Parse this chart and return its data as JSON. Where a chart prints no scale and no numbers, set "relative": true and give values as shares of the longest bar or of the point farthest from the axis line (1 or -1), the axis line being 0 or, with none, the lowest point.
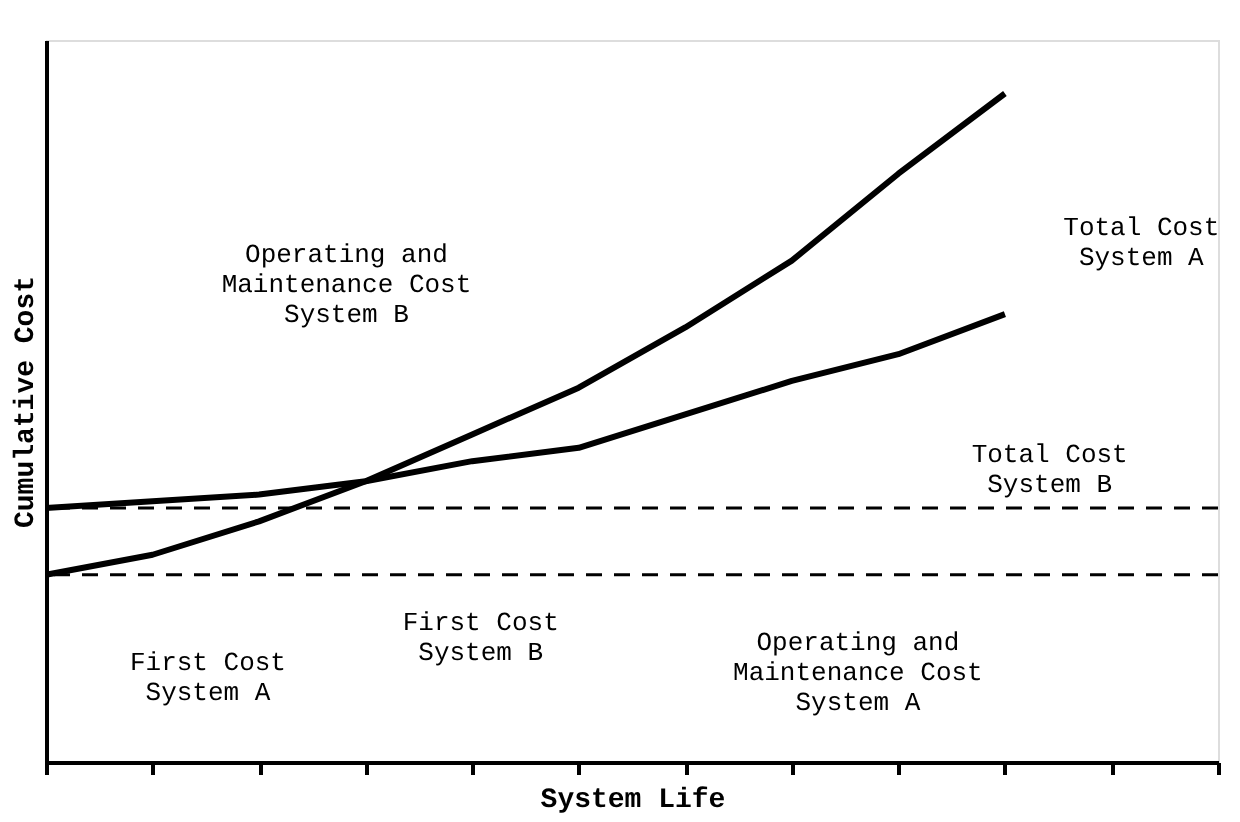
{
  "chart_data": {
    "type": "line",
    "relative": true,
    "xlabel": "System Life",
    "ylabel": "Cumulative Cost",
    "categories": [
      null,
      null,
      null,
      null,
      null,
      null,
      null,
      null,
      null,
      null,
      null,
      null
    ],
    "series": [
      {
        "color": "#000000",
        "values": [
          0.28,
          0.31,
          0.36,
          0.42,
          0.49,
          0.56,
          0.65,
          0.75,
          0.88,
          1.0,
          null,
          null
        ]
      },
      {
        "color": "#000000",
        "values": [
          0.38,
          0.39,
          0.4,
          0.42,
          0.45,
          0.47,
          0.52,
          0.57,
          0.61,
          0.67,
          null,
          null
        ]
      }
    ],
    "ref_lines": [
      {
        "axis": "y",
        "value": 0.28,
        "line_style": "dashed",
        "color": "#000000"
      },
      {
        "axis": "y",
        "value": 0.38,
        "line_style": "dashed",
        "color": "#000000"
      }
    ],
    "annotations": [
      "Operating and\nMaintenance Cost\nSystem B",
      "Total Cost\nSystem A",
      "Total Cost\nSystem B",
      "First Cost\nSystem A",
      "First Cost\nSystem B",
      "Operating and\nMaintenance Cost\nSystem A"
    ],
    "grid": false,
    "marker": "none",
    "line_style": "solid"
  }
}
